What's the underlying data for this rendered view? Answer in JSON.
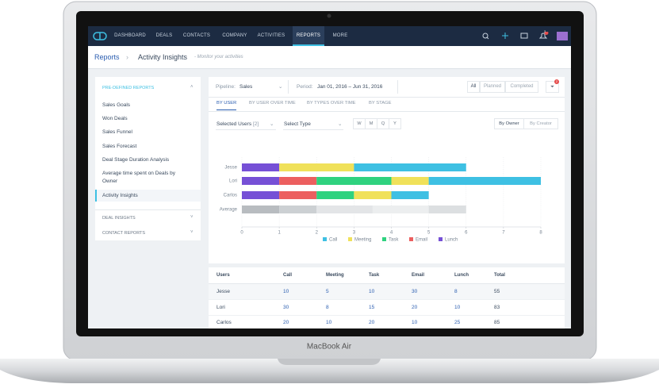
{
  "nav": {
    "items": [
      "DASHBOARD",
      "DEALS",
      "CONTACTS",
      "COMPANY",
      "ACTIVITIES",
      "REPORTS",
      "MORE"
    ],
    "active": 5,
    "badge": "2"
  },
  "breadcrumb": {
    "root": "Reports",
    "page": "Activity Insights",
    "hint": "- Monitor your activities"
  },
  "sidebar": {
    "section": "PRE-DEFINED REPORTS",
    "items": [
      "Sales Goals",
      "Won Deals",
      "Sales Funnel",
      "Sales Forecast",
      "Deal Stage Duration Analysis",
      "Average time spent on Deals by Owner",
      "Activity Insights"
    ],
    "active": 6,
    "groups": [
      "DEAL INSIGHTS",
      "CONTACT REPORTS"
    ]
  },
  "filters": {
    "pipeline_label": "Pipeline:",
    "pipeline": "Sales",
    "period_label": "Period:",
    "period": "Jan 01, 2016 – Jun 31, 2016",
    "status": [
      "All",
      "Planned",
      "Completed"
    ],
    "filter_badge": "2"
  },
  "tabs": {
    "items": [
      "BY USER",
      "BY USER OVER TIME",
      "BY TYPES OVER TIME",
      "BY STAGE"
    ],
    "active": 0
  },
  "controls": {
    "users": "Selected Users",
    "users_count": "[2]",
    "type": "Select Type",
    "periods": [
      "W",
      "M",
      "Q",
      "Y"
    ],
    "owner": [
      "By Owner",
      "By Creator"
    ]
  },
  "chart_data": {
    "type": "bar",
    "orientation": "horizontal",
    "stacked": true,
    "categories": [
      "Jesse",
      "Lori",
      "Carlos",
      "Average"
    ],
    "muted_categories": [
      3
    ],
    "series": [
      {
        "name": "Call",
        "color": "#3ec0e3",
        "average_color": "#dcdfe1",
        "values": [
          3,
          3,
          1,
          1
        ]
      },
      {
        "name": "Meeting",
        "color": "#f0e15a",
        "average_color": "#eceeef",
        "values": [
          2,
          1,
          1,
          1.5
        ]
      },
      {
        "name": "Task",
        "color": "#2fd27f",
        "average_color": "#e3e5e7",
        "values": [
          0,
          2,
          1,
          1.5
        ]
      },
      {
        "name": "Email",
        "color": "#ec5f5f",
        "average_color": "#ccd0d3",
        "values": [
          0,
          1,
          1,
          1
        ]
      },
      {
        "name": "Lunch",
        "color": "#7650d6",
        "average_color": "#b8bcc0",
        "values": [
          1,
          1,
          1,
          1
        ]
      }
    ],
    "xlim": [
      0,
      8
    ],
    "xticks": [
      0,
      1,
      2,
      3,
      4,
      5,
      6,
      7,
      8
    ],
    "grid": true,
    "legend": "bottom"
  },
  "table": {
    "columns": [
      "Users",
      "Call",
      "Meeting",
      "Task",
      "Email",
      "Lunch",
      "Total"
    ],
    "rows": [
      [
        "Jesse",
        10,
        5,
        10,
        30,
        8,
        55
      ],
      [
        "Lori",
        30,
        8,
        15,
        20,
        10,
        83
      ],
      [
        "Carlos",
        20,
        10,
        20,
        10,
        25,
        85
      ]
    ]
  },
  "device": "MacBook Air"
}
